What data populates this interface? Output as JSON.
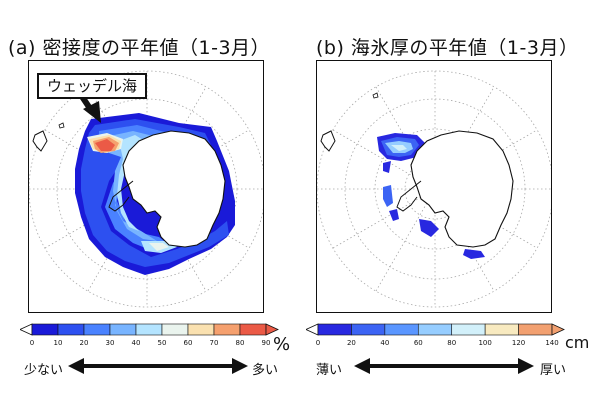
{
  "panels": {
    "a": {
      "title": "(a) 密接度の平年値（1-3月）",
      "callout": "ウェッデル海"
    },
    "b": {
      "title": "(b) 海氷厚の平年値（1-3月）"
    }
  },
  "colorbars": {
    "a": {
      "ticks": [
        "0",
        "10",
        "20",
        "30",
        "40",
        "50",
        "60",
        "70",
        "80",
        "90"
      ],
      "unit": "%",
      "low_label": "少ない",
      "high_label": "多い",
      "colors": [
        "#1a1ad8",
        "#2d50f0",
        "#4a82ff",
        "#78b4ff",
        "#b4e4ff",
        "#eaf4ee",
        "#fae1b0",
        "#f5a06e",
        "#eb5a46"
      ]
    },
    "b": {
      "ticks": [
        "0",
        "20",
        "40",
        "60",
        "80",
        "100",
        "120",
        "140"
      ],
      "unit": "cm",
      "low_label": "薄い",
      "high_label": "厚い",
      "colors": [
        "#2828e0",
        "#3c64f4",
        "#5a96ff",
        "#96cdff",
        "#d2f0fa",
        "#f8eac0",
        "#f2a070"
      ]
    }
  }
}
